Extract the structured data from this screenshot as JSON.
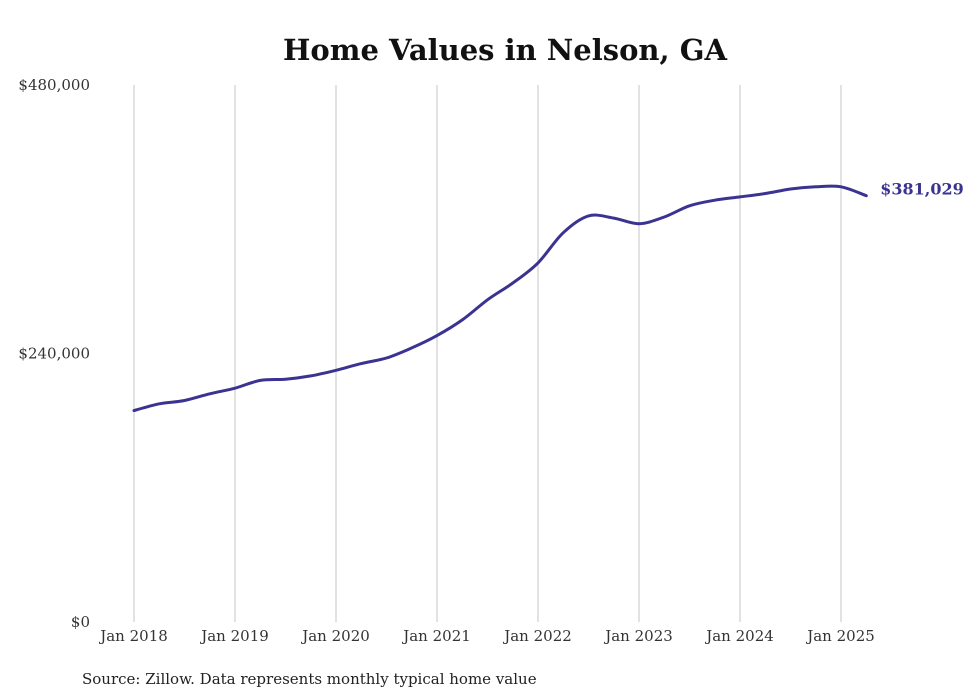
{
  "chart_data": {
    "type": "line",
    "title": "Home Values in Nelson, GA",
    "xlabel": "",
    "ylabel": "",
    "x_ticks": [
      "Jan 2018",
      "Jan 2019",
      "Jan 2020",
      "Jan 2021",
      "Jan 2022",
      "Jan 2023",
      "Jan 2024",
      "Jan 2025"
    ],
    "y_ticks": [
      "$0",
      "$240,000",
      "$480,000"
    ],
    "ylim": [
      0,
      480000
    ],
    "xlim": [
      "2018-01",
      "2025-04"
    ],
    "grid": "vertical",
    "source": "Source: Zillow. Data represents monthly typical home value",
    "end_label": "$381,029",
    "line_color": "#3b3391",
    "series": [
      {
        "x": [
          "2018-01",
          "2018-04",
          "2018-07",
          "2018-10",
          "2019-01",
          "2019-04",
          "2019-07",
          "2019-10",
          "2020-01",
          "2020-04",
          "2020-07",
          "2020-10",
          "2021-01",
          "2021-04",
          "2021-07",
          "2021-10",
          "2022-01",
          "2022-04",
          "2022-07",
          "2022-10",
          "2023-01",
          "2023-04",
          "2023-07",
          "2023-10",
          "2024-01",
          "2024-04",
          "2024-07",
          "2024-10",
          "2025-01",
          "2025-04"
        ],
        "values": [
          189000,
          195000,
          198000,
          204000,
          209000,
          216000,
          217000,
          220000,
          225000,
          231000,
          236000,
          245000,
          256000,
          270000,
          288000,
          303000,
          321000,
          348000,
          363000,
          361000,
          356000,
          362000,
          372000,
          377000,
          380000,
          383000,
          387000,
          389000,
          389000,
          381029
        ]
      }
    ]
  }
}
